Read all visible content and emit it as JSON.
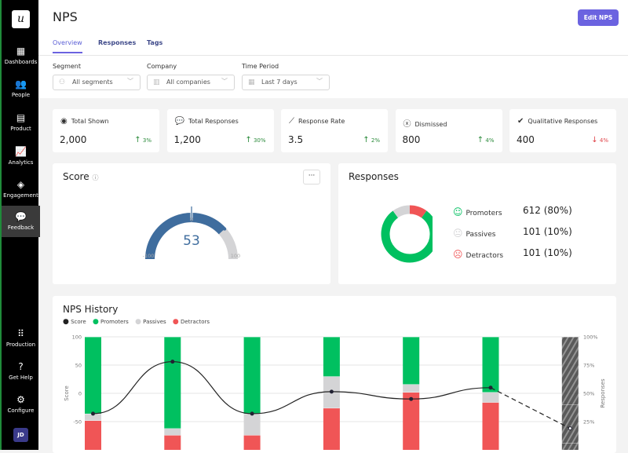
{
  "sidebar": {
    "logo": "u",
    "items": [
      {
        "label": "Dashboards",
        "icon": "▦"
      },
      {
        "label": "People",
        "icon": "👥"
      },
      {
        "label": "Product",
        "icon": "▤"
      },
      {
        "label": "Analytics",
        "icon": "📈"
      },
      {
        "label": "Engagement",
        "icon": "◈"
      },
      {
        "label": "Feedback",
        "icon": "💬",
        "active": true
      }
    ],
    "bottom": [
      {
        "label": "Production",
        "icon": "⠿"
      },
      {
        "label": "Get Help",
        "icon": "?"
      },
      {
        "label": "Configure",
        "icon": "⚙"
      }
    ],
    "avatar": "JD"
  },
  "header": {
    "title": "NPS",
    "edit_button": "Edit NPS",
    "tabs": [
      "Overview",
      "Responses",
      "Tags"
    ],
    "active_tab": "Overview"
  },
  "filters": [
    {
      "label": "Segment",
      "value": "All segments"
    },
    {
      "label": "Company",
      "value": "All companies"
    },
    {
      "label": "Time Period",
      "value": "Last 7 days"
    }
  ],
  "stats": [
    {
      "label": "Total Shown",
      "value": "2,000",
      "change": "3%",
      "direction": "up",
      "icon": "eye-icon"
    },
    {
      "label": "Total Responses",
      "value": "1,200",
      "change": "30%",
      "direction": "up",
      "icon": "speech-bubble-icon"
    },
    {
      "label": "Response Rate",
      "value": "3.5",
      "change": "2%",
      "direction": "up",
      "icon": "line-chart-icon"
    },
    {
      "label": "Dismissed",
      "value": "800",
      "change": "4%",
      "direction": "up",
      "icon": "x-circle-icon"
    },
    {
      "label": "Qualitative Responses",
      "value": "400",
      "change": "4%",
      "direction": "down",
      "icon": "checked-bubble-icon"
    }
  ],
  "score": {
    "title": "Score",
    "value": "53",
    "min": "-100",
    "mid": "0",
    "max": "100",
    "more": "···"
  },
  "responses": {
    "title": "Responses",
    "items": [
      {
        "label": "Promoters",
        "value": "612 (80%)",
        "color": "#00c060"
      },
      {
        "label": "Passives",
        "value": "101 (10%)",
        "color": "#d4d4d6"
      },
      {
        "label": "Detractors",
        "value": "101 (10%)",
        "color": "#f05556"
      }
    ]
  },
  "history": {
    "title": "NPS History",
    "legend": [
      "Score",
      "Promoters",
      "Passives",
      "Detractors"
    ]
  },
  "chart_data": {
    "type": "bar",
    "stacked": true,
    "left_axis": {
      "label": "Score",
      "ticks": [
        "100",
        "50",
        "0",
        "-50"
      ],
      "range": [
        -100,
        100
      ]
    },
    "right_axis": {
      "label": "Responses",
      "ticks": [
        "100%",
        "75%",
        "50%",
        "25%"
      ],
      "range": [
        0,
        100
      ]
    },
    "colors": {
      "Promoters": "#00c060",
      "Passives": "#d4d4d6",
      "Detractors": "#f05556",
      "Score": "#222222"
    },
    "series": [
      {
        "name": "Promoters",
        "values": [
          68,
          81,
          68,
          35,
          42,
          49,
          60
        ]
      },
      {
        "name": "Passives",
        "values": [
          6,
          6,
          19,
          28,
          7,
          9,
          34
        ]
      },
      {
        "name": "Detractors",
        "values": [
          26,
          13,
          13,
          37,
          51,
          42,
          6
        ]
      },
      {
        "name": "Score",
        "values": [
          -36,
          56,
          -36,
          3,
          -10,
          10,
          -62
        ]
      }
    ],
    "projected_last": true,
    "grid": true
  }
}
